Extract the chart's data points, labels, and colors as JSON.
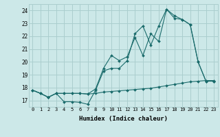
{
  "title": "",
  "xlabel": "Humidex (Indice chaleur)",
  "bg_color": "#cce8e8",
  "grid_color": "#aacece",
  "line_color": "#1a6b6b",
  "xlim": [
    -0.5,
    23.5
  ],
  "ylim": [
    16.5,
    24.5
  ],
  "yticks": [
    17,
    18,
    19,
    20,
    21,
    22,
    23,
    24
  ],
  "xticks": [
    0,
    1,
    2,
    3,
    4,
    5,
    6,
    7,
    8,
    9,
    10,
    11,
    12,
    13,
    14,
    15,
    16,
    17,
    18,
    19,
    20,
    21,
    22,
    23
  ],
  "series": [
    [
      17.8,
      17.55,
      17.25,
      17.55,
      16.9,
      16.9,
      16.85,
      16.7,
      17.8,
      19.3,
      19.5,
      19.5,
      20.1,
      22.2,
      22.8,
      21.3,
      22.8,
      24.1,
      23.6,
      23.3,
      22.9,
      20.0,
      18.5,
      18.5
    ],
    [
      17.8,
      17.55,
      17.25,
      17.55,
      17.55,
      17.55,
      17.55,
      17.5,
      17.55,
      17.65,
      17.7,
      17.75,
      17.8,
      17.85,
      17.9,
      17.95,
      18.05,
      18.15,
      18.25,
      18.35,
      18.45,
      18.5,
      18.55,
      18.55
    ],
    [
      17.8,
      17.55,
      17.25,
      17.55,
      17.55,
      17.55,
      17.55,
      17.5,
      17.9,
      19.5,
      20.5,
      20.1,
      20.4,
      21.9,
      20.5,
      22.2,
      21.6,
      24.1,
      23.4,
      23.3,
      22.9,
      20.0,
      18.5,
      18.5
    ]
  ]
}
